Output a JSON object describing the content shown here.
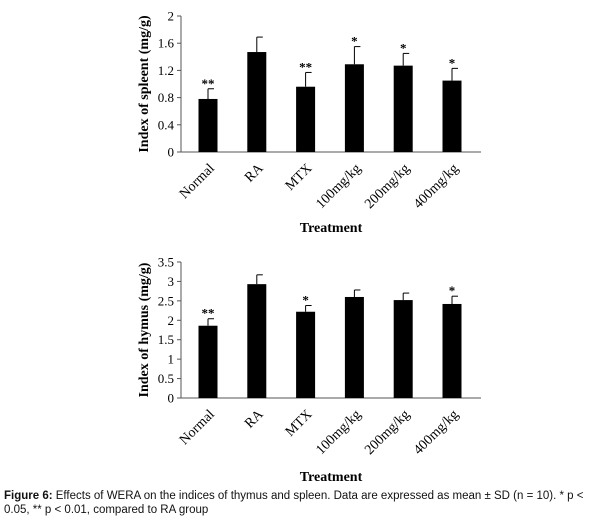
{
  "caption": {
    "label": "Figure 6:",
    "text": "Effects of WERA on the indices of thymus and spleen. Data are expressed as mean ± SD (n = 10). * p < 0.05, ** p < 0.01, compared to RA group"
  },
  "chart_data": [
    {
      "type": "bar",
      "title": "",
      "xlabel": "Treatment",
      "ylabel": "Index of spleent (mg/g)",
      "categories": [
        "Normal",
        "RA",
        "MTX",
        "100mg/kg",
        "200mg/kg",
        "400mg/kg"
      ],
      "values": [
        0.78,
        1.47,
        0.96,
        1.29,
        1.27,
        1.05
      ],
      "errors": [
        0.15,
        0.22,
        0.21,
        0.26,
        0.18,
        0.18
      ],
      "significance": [
        "**",
        "",
        "**",
        "*",
        "*",
        "*"
      ],
      "ylim": [
        0,
        2
      ],
      "yticks": [
        0,
        0.4,
        0.8,
        1.2,
        1.6,
        2
      ],
      "ytick_labels": [
        "0",
        "0.4",
        "0.8",
        "1.2",
        "1.6",
        "2"
      ],
      "bar_color": "#000000",
      "grid": false
    },
    {
      "type": "bar",
      "title": "",
      "xlabel": "Treatment",
      "ylabel": "Index of hymus (mg/g)",
      "categories": [
        "Normal",
        "RA",
        "MTX",
        "100mg/kg",
        "200mg/kg",
        "400mg/kg"
      ],
      "values": [
        1.86,
        2.93,
        2.22,
        2.6,
        2.52,
        2.42
      ],
      "errors": [
        0.18,
        0.24,
        0.16,
        0.18,
        0.18,
        0.2
      ],
      "significance": [
        "**",
        "",
        "*",
        "",
        "",
        "*"
      ],
      "ylim": [
        0,
        3.5
      ],
      "yticks": [
        0,
        0.5,
        1,
        1.5,
        2,
        2.5,
        3,
        3.5
      ],
      "ytick_labels": [
        "0",
        "0.5",
        "1",
        "1.5",
        "2",
        "2.5",
        "3",
        "3.5"
      ],
      "bar_color": "#000000",
      "grid": false
    }
  ]
}
